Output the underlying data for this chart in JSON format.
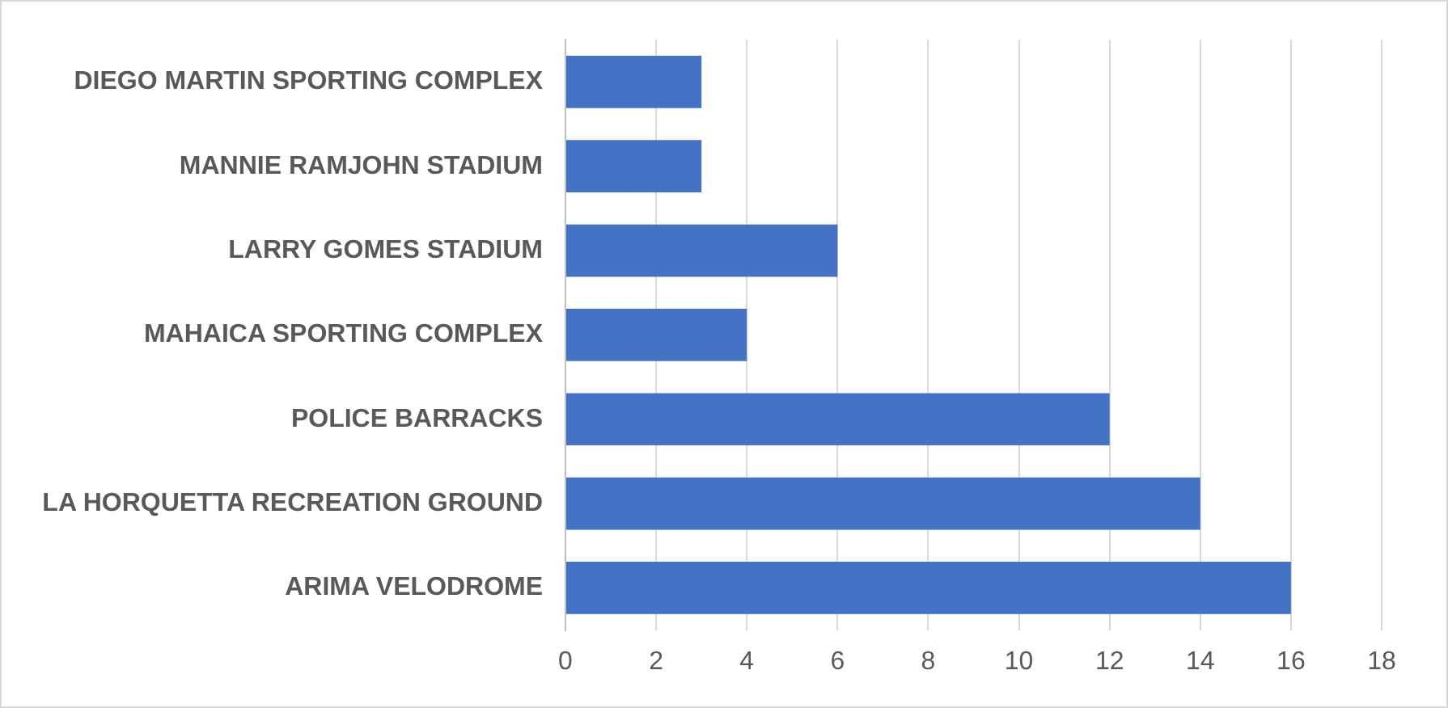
{
  "chart_data": {
    "type": "bar",
    "orientation": "horizontal",
    "categories": [
      "DIEGO MARTIN SPORTING COMPLEX",
      "MANNIE RAMJOHN STADIUM",
      "LARRY GOMES STADIUM",
      "MAHAICA SPORTING COMPLEX",
      "POLICE BARRACKS",
      "LA HORQUETTA RECREATION GROUND",
      "ARIMA VELODROME"
    ],
    "values": [
      3,
      3,
      6,
      4,
      12,
      14,
      16
    ],
    "color": "#4472c4",
    "xlim": [
      0,
      18
    ],
    "xticks": [
      0,
      2,
      4,
      6,
      8,
      10,
      12,
      14,
      16,
      18
    ],
    "grid": "x",
    "legend": false
  }
}
